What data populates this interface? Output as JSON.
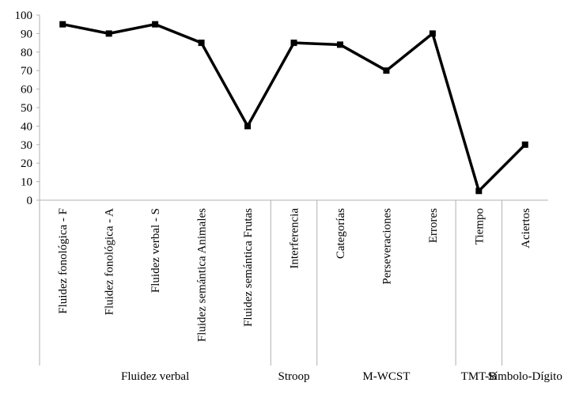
{
  "chart_data": {
    "type": "line",
    "title": "",
    "xlabel": "",
    "ylabel": "",
    "ylim": [
      0,
      100
    ],
    "yticks": [
      0,
      10,
      20,
      30,
      40,
      50,
      60,
      70,
      80,
      90,
      100
    ],
    "grid": false,
    "legend": "none",
    "line_color": "#000000",
    "marker": "square",
    "categories": [
      "Fluidez fonológica - F",
      "Fluidez fonológica - A",
      "Fluidez verbal - S",
      "Fluidez semántica Animales",
      "Fluidez semántica  Frutas",
      "Interferencia",
      "Categorías",
      "Perseveraciones",
      "Errores",
      "Tiempo",
      "Aciertos"
    ],
    "values": [
      95,
      90,
      95,
      85,
      40,
      85,
      84,
      70,
      90,
      5,
      30
    ],
    "groups": [
      {
        "label": "Fluidez verbal",
        "start": 0,
        "end": 4
      },
      {
        "label": "Stroop",
        "start": 5,
        "end": 5
      },
      {
        "label": "M-WCST",
        "start": 6,
        "end": 8
      },
      {
        "label": "TMT-B",
        "start": 9,
        "end": 9
      },
      {
        "label": "Símbolo-Dígito",
        "start": 10,
        "end": 10
      }
    ]
  }
}
